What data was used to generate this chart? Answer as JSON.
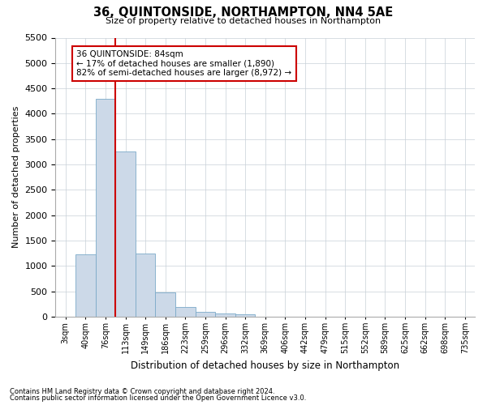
{
  "title": "36, QUINTONSIDE, NORTHAMPTON, NN4 5AE",
  "subtitle": "Size of property relative to detached houses in Northampton",
  "xlabel": "Distribution of detached houses by size in Northampton",
  "ylabel": "Number of detached properties",
  "footer_line1": "Contains HM Land Registry data © Crown copyright and database right 2024.",
  "footer_line2": "Contains public sector information licensed under the Open Government Licence v3.0.",
  "bar_labels": [
    "3sqm",
    "40sqm",
    "76sqm",
    "113sqm",
    "149sqm",
    "186sqm",
    "223sqm",
    "259sqm",
    "296sqm",
    "332sqm",
    "369sqm",
    "406sqm",
    "442sqm",
    "479sqm",
    "515sqm",
    "552sqm",
    "589sqm",
    "625sqm",
    "662sqm",
    "698sqm",
    "735sqm"
  ],
  "bar_values": [
    0,
    1230,
    4300,
    3250,
    1250,
    480,
    200,
    100,
    70,
    50,
    0,
    0,
    0,
    0,
    0,
    0,
    0,
    0,
    0,
    0,
    0
  ],
  "bar_color": "#ccd9e8",
  "bar_edgecolor": "#7baac8",
  "vline_x": 2.5,
  "vline_color": "#cc0000",
  "ylim": [
    0,
    5500
  ],
  "yticks": [
    0,
    500,
    1000,
    1500,
    2000,
    2500,
    3000,
    3500,
    4000,
    4500,
    5000,
    5500
  ],
  "annotation_text": "36 QUINTONSIDE: 84sqm\n← 17% of detached houses are smaller (1,890)\n82% of semi-detached houses are larger (8,972) →",
  "annotation_box_color": "#cc0000",
  "background_color": "#ffffff",
  "grid_color": "#c8d0d8"
}
